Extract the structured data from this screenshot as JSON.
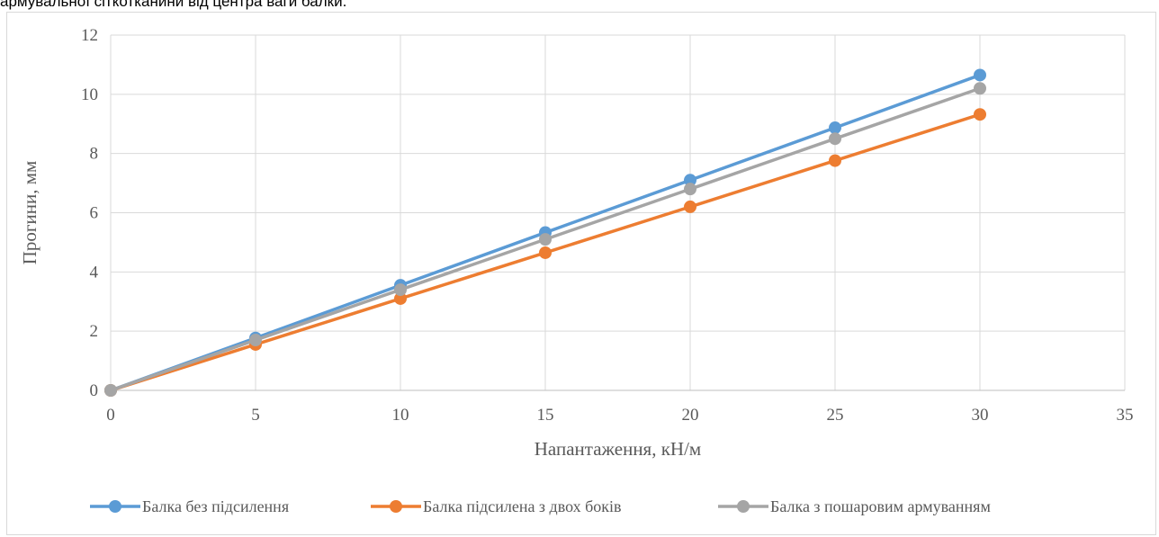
{
  "document": {
    "top_text": "армувальної сіткотканини від центра ваги балки."
  },
  "chart_data": {
    "type": "line",
    "title": "",
    "xlabel": "Напантаження, кН/м",
    "ylabel": "Прогини, мм",
    "xlim": [
      0,
      35
    ],
    "ylim": [
      0,
      12
    ],
    "x_ticks": [
      0,
      5,
      10,
      15,
      20,
      25,
      30,
      35
    ],
    "y_ticks": [
      0,
      2,
      4,
      6,
      8,
      10,
      12
    ],
    "grid": true,
    "legend_position": "bottom",
    "x": [
      0,
      5,
      10,
      15,
      20,
      25,
      30
    ],
    "series": [
      {
        "name": "Балка без підсилення",
        "color": "#5b9bd5",
        "values": [
          0,
          1.77,
          3.55,
          5.33,
          7.1,
          8.87,
          10.65
        ]
      },
      {
        "name": "Балка підсилена з двох боків",
        "color": "#ed7d31",
        "values": [
          0,
          1.55,
          3.1,
          4.65,
          6.2,
          7.76,
          9.32
        ]
      },
      {
        "name": "Балка з пошаровим армуванням",
        "color": "#a5a5a5",
        "values": [
          0,
          1.7,
          3.4,
          5.1,
          6.8,
          8.5,
          10.2
        ]
      }
    ]
  }
}
